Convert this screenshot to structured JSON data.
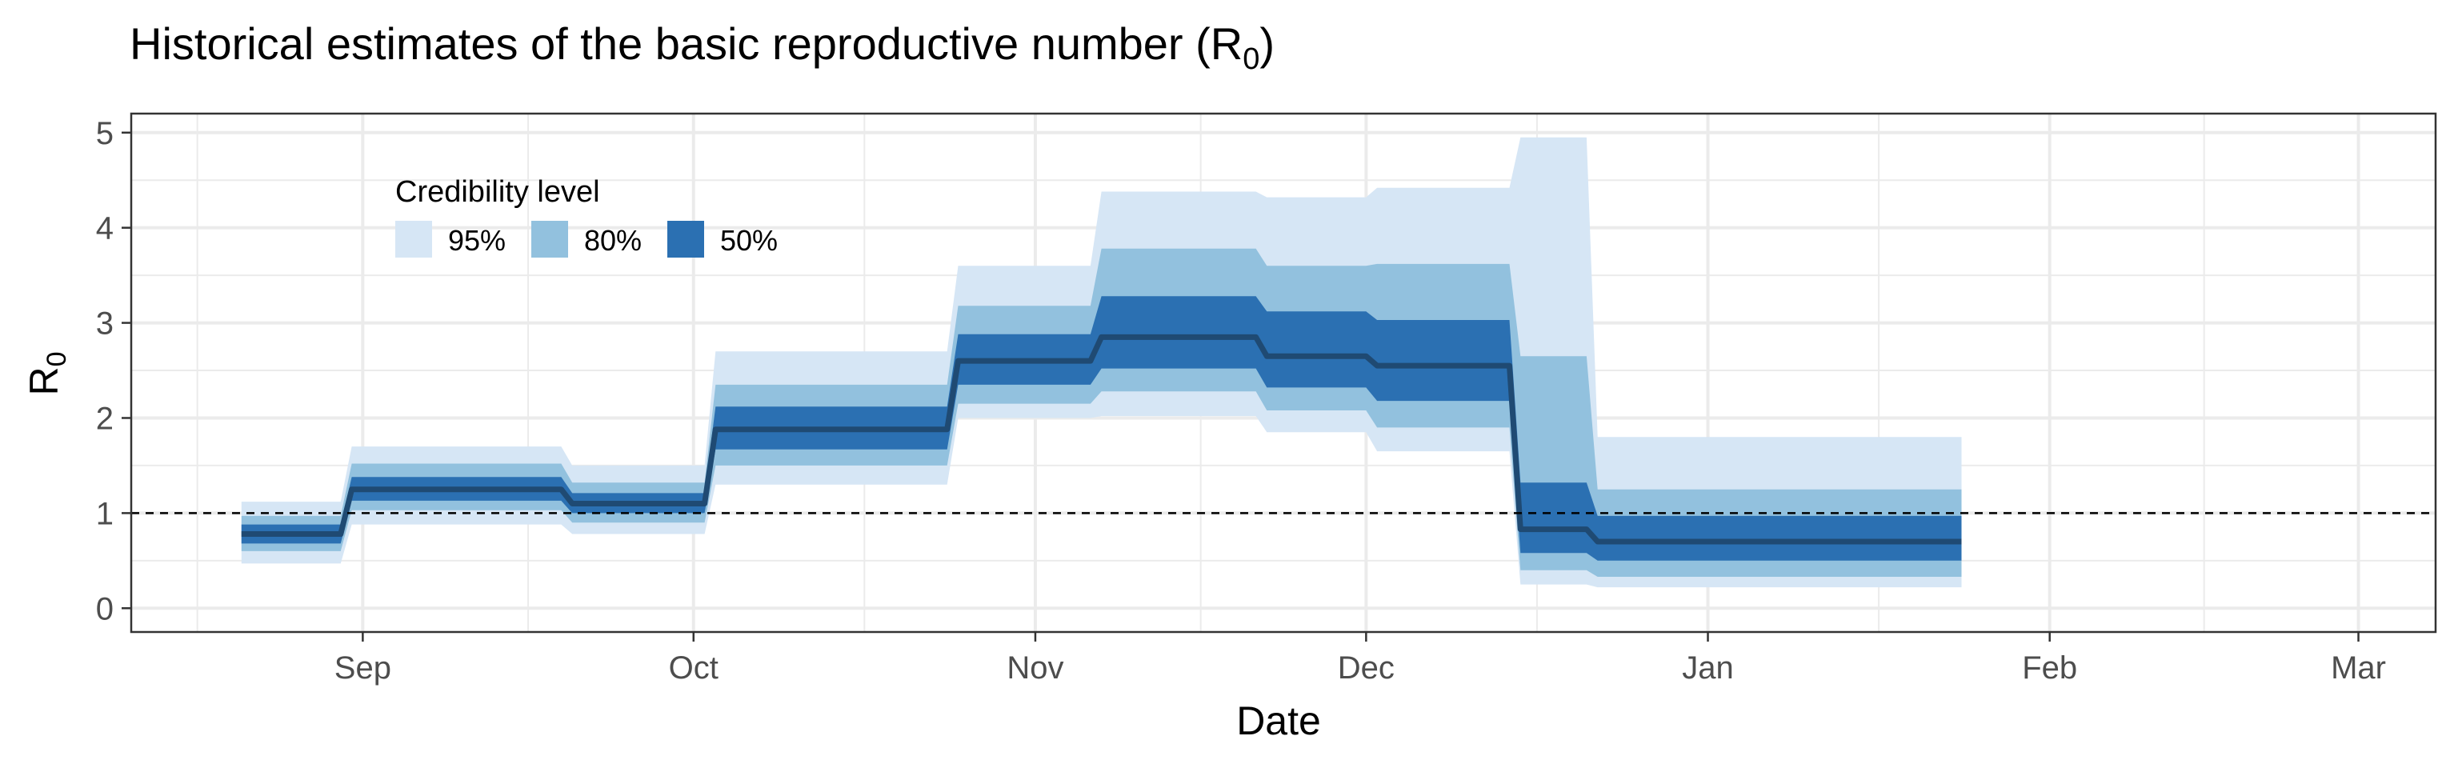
{
  "chart_data": {
    "type": "area",
    "title_main": "Historical estimates of the basic reproductive number (R",
    "title_sub": "0",
    "title_end": ")",
    "xlabel": "Date",
    "ylabel_main": "R",
    "ylabel_sub": "0",
    "x_tick_labels": [
      {
        "date": "2020-09-01",
        "label": "Sep"
      },
      {
        "date": "2020-10-01",
        "label": "Oct"
      },
      {
        "date": "2020-11-01",
        "label": "Nov"
      },
      {
        "date": "2020-12-01",
        "label": "Dec"
      },
      {
        "date": "2021-01-01",
        "label": "Jan"
      },
      {
        "date": "2021-02-01",
        "label": "Feb"
      },
      {
        "date": "2021-03-01",
        "label": "Mar"
      }
    ],
    "xlim": [
      "2020-08-11",
      "2021-03-08"
    ],
    "ylim": [
      -0.25,
      5.2
    ],
    "y_ticks": [
      0,
      1,
      2,
      3,
      4,
      5
    ],
    "reference_line": {
      "y": 1,
      "style": "dashed"
    },
    "grid": true,
    "legend": {
      "title": "Credibility level",
      "placement": "top-left inside",
      "items": [
        {
          "label": "95%",
          "color": "#d6e6f5"
        },
        {
          "label": "80%",
          "color": "#92c1de"
        },
        {
          "label": "50%",
          "color": "#2b70b2"
        }
      ]
    },
    "median_color": "#1f4a73",
    "segments": [
      {
        "start": "2020-08-21",
        "end": "2020-08-30",
        "median": 0.78,
        "ci50": [
          0.68,
          0.88
        ],
        "ci80": [
          0.6,
          0.97
        ],
        "ci95": [
          0.47,
          1.12
        ]
      },
      {
        "start": "2020-08-31",
        "end": "2020-09-19",
        "median": 1.25,
        "ci50": [
          1.13,
          1.38
        ],
        "ci80": [
          1.03,
          1.52
        ],
        "ci95": [
          0.88,
          1.7
        ]
      },
      {
        "start": "2020-09-20",
        "end": "2020-10-02",
        "median": 1.1,
        "ci50": [
          1.0,
          1.21
        ],
        "ci80": [
          0.9,
          1.32
        ],
        "ci95": [
          0.78,
          1.5
        ]
      },
      {
        "start": "2020-10-03",
        "end": "2020-10-24",
        "median": 1.88,
        "ci50": [
          1.67,
          2.12
        ],
        "ci80": [
          1.5,
          2.35
        ],
        "ci95": [
          1.3,
          2.7
        ]
      },
      {
        "start": "2020-10-25",
        "end": "2020-11-06",
        "median": 2.6,
        "ci50": [
          2.35,
          2.88
        ],
        "ci80": [
          2.15,
          3.18
        ],
        "ci95": [
          2.0,
          3.6
        ]
      },
      {
        "start": "2020-11-07",
        "end": "2020-11-21",
        "median": 2.85,
        "ci50": [
          2.52,
          3.28
        ],
        "ci80": [
          2.28,
          3.78
        ],
        "ci95": [
          2.02,
          4.38
        ]
      },
      {
        "start": "2020-11-22",
        "end": "2020-12-01",
        "median": 2.65,
        "ci50": [
          2.32,
          3.12
        ],
        "ci80": [
          2.08,
          3.6
        ],
        "ci95": [
          1.85,
          4.32
        ]
      },
      {
        "start": "2020-12-02",
        "end": "2020-12-14",
        "median": 2.55,
        "ci50": [
          2.18,
          3.03
        ],
        "ci80": [
          1.9,
          3.62
        ],
        "ci95": [
          1.65,
          4.42
        ]
      },
      {
        "start": "2020-12-15",
        "end": "2020-12-21",
        "median": 0.83,
        "ci50": [
          0.58,
          1.32
        ],
        "ci80": [
          0.4,
          2.65
        ],
        "ci95": [
          0.25,
          4.95
        ]
      },
      {
        "start": "2020-12-22",
        "end": "2021-01-24",
        "median": 0.7,
        "ci50": [
          0.5,
          0.97
        ],
        "ci80": [
          0.33,
          1.25
        ],
        "ci95": [
          0.22,
          1.8
        ]
      }
    ]
  }
}
